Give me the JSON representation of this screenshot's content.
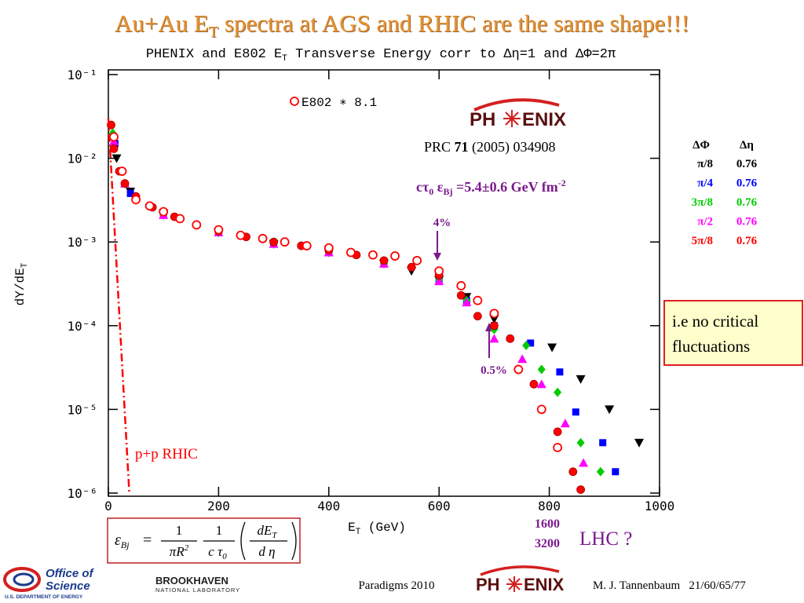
{
  "slide": {
    "title": [
      "Au+Au E",
      "T",
      " spectra at AGS and RHIC are the same shape!!!"
    ],
    "note_box": [
      "i.e no critical",
      "fluctuations"
    ],
    "lhc": {
      "energies": [
        "1600",
        "3200"
      ],
      "label": "LHC ?"
    },
    "formula": {
      "lhs": "ε",
      "lhs_sub": "Bj",
      "eq": "=",
      "n1": "1",
      "d1": "πR",
      "d1_sup": "2",
      "n2": "1",
      "d2": "c τ",
      "d2_sub": "0",
      "n3": "dE",
      "n3_sub": "T",
      "d3": "d η"
    },
    "footer_left": "Paradigms 2010",
    "footer_right": "M. J. Tannenbaum   21/60/65/77",
    "logo_phenix": [
      "PH",
      "ENIX"
    ],
    "logo_doe": [
      "Office of",
      "Science",
      "U.S. DEPARTMENT OF ENERGY"
    ],
    "logo_bnl": [
      "BROOKHAVEN",
      "NATIONAL LABORATORY"
    ]
  },
  "chart_data": {
    "type": "scatter",
    "subtitle": [
      "PHENIX and E802 E",
      "T",
      " Transverse Energy corr to Δη=1 and ΔΦ=2π"
    ],
    "xlabel": [
      "E",
      "T",
      " (GeV)"
    ],
    "ylabel": [
      "dY/dE",
      "T"
    ],
    "xlim": [
      0,
      1000
    ],
    "xticks": [
      0,
      200,
      400,
      600,
      800,
      1000
    ],
    "ylim": [
      1e-06,
      0.1
    ],
    "ylog": true,
    "yticks": [
      {
        "value": 0.1,
        "label": "10⁻¹"
      },
      {
        "value": 0.01,
        "label": "10⁻²"
      },
      {
        "value": 0.001,
        "label": "10⁻³"
      },
      {
        "value": 0.0001,
        "label": "10⁻⁴"
      },
      {
        "value": 1e-05,
        "label": "10⁻⁵"
      },
      {
        "value": 1e-06,
        "label": "10⁻⁶"
      }
    ],
    "legend_header": [
      "ΔΦ",
      "Δη"
    ],
    "annotations": {
      "reference": [
        "PRC ",
        "71",
        " (2005) 034908"
      ],
      "energy_density": [
        "cτ",
        "0",
        " ε",
        "Bj",
        " =5.4±0.6 GeV fm",
        "-2"
      ],
      "arrow_high": "4%",
      "arrow_low": "0.5%"
    },
    "series": [
      {
        "name": "π/8",
        "deta": "0.76",
        "color": "#000000",
        "marker": "triangle-down",
        "x": [
          15,
          40,
          100,
          200,
          300,
          400,
          500,
          550,
          600,
          650,
          700,
          805,
          857,
          909,
          963
        ],
        "values": [
          0.01,
          0.004,
          0.0022,
          0.0013,
          0.00095,
          0.00075,
          0.00055,
          0.00045,
          0.00035,
          0.00022,
          0.00012,
          5.5e-05,
          2.3e-05,
          1e-05,
          4e-06
        ]
      },
      {
        "name": "π/4",
        "deta": "0.76",
        "color": "#0000ff",
        "marker": "square",
        "x": [
          12,
          40,
          100,
          200,
          300,
          400,
          500,
          600,
          650,
          700,
          766,
          819,
          848,
          897,
          920
        ],
        "values": [
          0.015,
          0.0038,
          0.0021,
          0.0013,
          0.00095,
          0.00075,
          0.00055,
          0.00036,
          0.0002,
          0.0001,
          6.2e-05,
          2.8e-05,
          9.3e-06,
          4e-06,
          1.8e-06
        ]
      },
      {
        "name": "3π/8",
        "deta": "0.76",
        "color": "#00cc00",
        "marker": "diamond",
        "x": [
          8,
          30,
          100,
          200,
          300,
          400,
          500,
          600,
          650,
          700,
          758,
          786,
          815,
          857,
          893
        ],
        "values": [
          0.02,
          0.005,
          0.0021,
          0.0013,
          0.00095,
          0.00075,
          0.00055,
          0.00035,
          0.0002,
          9e-05,
          5.8e-05,
          3e-05,
          1.6e-05,
          4e-06,
          1.8e-06
        ]
      },
      {
        "name": "π/2",
        "deta": "0.76",
        "color": "#ff00ff",
        "marker": "triangle-up",
        "x": [
          10,
          30,
          100,
          200,
          300,
          400,
          500,
          600,
          650,
          700,
          751,
          786,
          829,
          862
        ],
        "values": [
          0.016,
          0.005,
          0.0021,
          0.0013,
          0.00095,
          0.00075,
          0.00055,
          0.00034,
          0.00019,
          7e-05,
          4e-05,
          2e-05,
          6.8e-06,
          2.3e-06
        ]
      },
      {
        "name": "5π/8",
        "deta": "0.76",
        "color": "#ff0000",
        "marker": "circle",
        "x": [
          5,
          10,
          20,
          30,
          50,
          80,
          120,
          160,
          200,
          250,
          300,
          350,
          400,
          450,
          500,
          550,
          600,
          640,
          670,
          700,
          729,
          772,
          815,
          843,
          857
        ],
        "values": [
          0.025,
          0.013,
          0.007,
          0.005,
          0.0035,
          0.0026,
          0.002,
          0.0016,
          0.00135,
          0.00115,
          0.001,
          0.0009,
          0.0008,
          0.0007,
          0.0006,
          0.0005,
          0.0004,
          0.00023,
          0.00013,
          0.0001,
          7e-05,
          2e-05,
          5.4e-06,
          1.8e-06,
          1.1e-06
        ]
      },
      {
        "name": "E802 ∗ 8.1",
        "color": "#ff0000",
        "marker": "circle-open",
        "x": [
          10,
          25,
          50,
          75,
          100,
          130,
          160,
          200,
          240,
          280,
          320,
          360,
          400,
          440,
          480,
          520,
          560,
          600,
          640,
          670,
          700,
          744,
          786,
          815
        ],
        "values": [
          0.018,
          0.007,
          0.0032,
          0.0027,
          0.0023,
          0.0019,
          0.0016,
          0.0014,
          0.0012,
          0.0011,
          0.001,
          0.0009,
          0.00085,
          0.00075,
          0.0007,
          0.00068,
          0.0006,
          0.00045,
          0.0003,
          0.0002,
          0.00014,
          3e-05,
          1e-05,
          3.5e-06
        ]
      },
      {
        "name": "p+p RHIC",
        "color": "#ff0000",
        "marker": "dash-dot",
        "x": [
          0,
          38
        ],
        "values": [
          0.03,
          1e-06
        ]
      }
    ]
  }
}
